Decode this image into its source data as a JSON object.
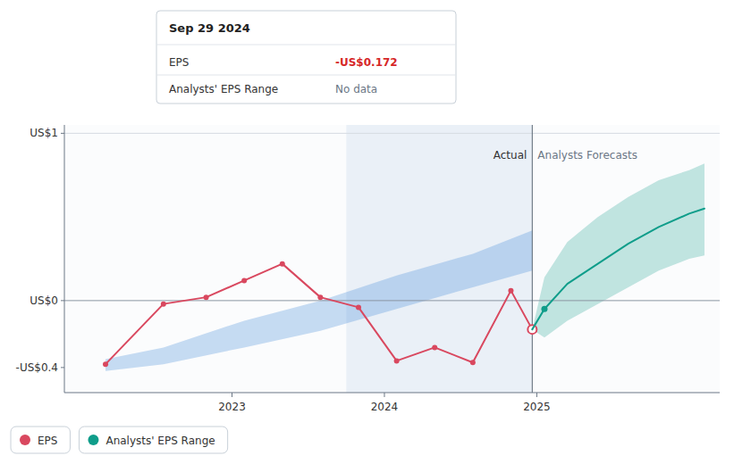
{
  "chart_data": {
    "type": "line",
    "xlim": [
      2021.9,
      2026.2
    ],
    "ylim": [
      -0.55,
      1.05
    ],
    "xticks": [
      2023.0,
      2024.0,
      2025.0
    ],
    "yticks": [
      {
        "value": 1.0,
        "label": "US$1"
      },
      {
        "value": 0.0,
        "label": "US$0"
      },
      {
        "value": -0.4,
        "label": "-US$0.4"
      }
    ],
    "grid": false,
    "legend": "bottom",
    "series": [
      {
        "name": "EPS",
        "type": "line",
        "color": "#d9485f",
        "marker": "circle",
        "x": [
          2022.17,
          2022.55,
          2022.83,
          2023.08,
          2023.33,
          2023.58,
          2023.83,
          2024.08,
          2024.33,
          2024.58,
          2024.83,
          2024.97
        ],
        "values": [
          -0.38,
          -0.02,
          0.02,
          0.12,
          0.22,
          0.02,
          -0.04,
          -0.36,
          -0.28,
          -0.37,
          0.06,
          -0.172
        ]
      },
      {
        "type": "band",
        "color": "#4a90d9",
        "x": [
          2022.17,
          2022.55,
          2023.08,
          2023.58,
          2024.08,
          2024.58,
          2024.97
        ],
        "low": [
          -0.42,
          -0.38,
          -0.28,
          -0.18,
          -0.05,
          0.08,
          0.18
        ],
        "high": [
          -0.35,
          -0.28,
          -0.12,
          0.0,
          0.15,
          0.28,
          0.42
        ]
      },
      {
        "name": "Analysts' EPS Range",
        "type": "line",
        "color": "#0f9d8a",
        "x": [
          2024.97,
          2025.05,
          2025.2,
          2025.4,
          2025.6,
          2025.8,
          2026.0,
          2026.1
        ],
        "values": [
          -0.172,
          -0.05,
          0.1,
          0.22,
          0.34,
          0.44,
          0.52,
          0.55
        ],
        "low": [
          -0.172,
          -0.22,
          -0.12,
          -0.02,
          0.08,
          0.18,
          0.25,
          0.27
        ],
        "high": [
          -0.172,
          0.14,
          0.35,
          0.5,
          0.62,
          0.72,
          0.78,
          0.82
        ]
      }
    ],
    "spans": [
      {
        "from": 2023.75,
        "to": 2024.97,
        "color": "#eaf0f7"
      }
    ],
    "vlines": [
      2024.97
    ],
    "hlines": [
      0,
      1.0
    ],
    "annotations": [
      {
        "text": "Actual"
      },
      {
        "text": "Analysts Forecasts"
      }
    ],
    "tooltip": {
      "title": "Sep 29 2024",
      "rows": [
        {
          "label": "EPS",
          "value": -0.172,
          "value_label": "-US$0.172",
          "color": "#d62728"
        },
        {
          "label": "Analysts' EPS Range",
          "value_label": "No data"
        }
      ]
    }
  }
}
